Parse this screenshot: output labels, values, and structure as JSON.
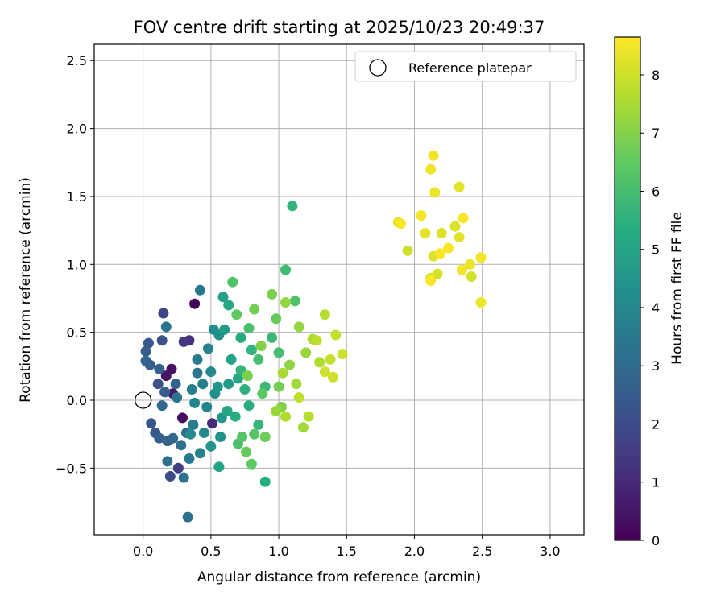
{
  "chart_data": {
    "type": "scatter",
    "title": "FOV centre drift starting at 2025/10/23 20:49:37",
    "xlabel": "Angular distance from reference (arcmin)",
    "ylabel": "Rotation from reference (arcmin)",
    "xlim": [
      -0.36,
      3.25
    ],
    "ylim": [
      -0.99,
      2.62
    ],
    "xticks": [
      0.0,
      0.5,
      1.0,
      1.5,
      2.0,
      2.5,
      3.0
    ],
    "xtick_labels": [
      "0.0",
      "0.5",
      "1.0",
      "1.5",
      "2.0",
      "2.5",
      "3.0"
    ],
    "yticks": [
      -0.5,
      0.0,
      0.5,
      1.0,
      1.5,
      2.0,
      2.5
    ],
    "ytick_labels": [
      "−0.5",
      "0.0",
      "0.5",
      "1.0",
      "1.5",
      "2.0",
      "2.5"
    ],
    "grid": true,
    "colormap": "viridis",
    "colorbar": {
      "label": "Hours from first FF file",
      "range": [
        0,
        8.65
      ],
      "ticks": [
        0,
        1,
        2,
        3,
        4,
        5,
        6,
        7,
        8
      ],
      "tick_labels": [
        "0",
        "1",
        "2",
        "3",
        "4",
        "5",
        "6",
        "7",
        "8"
      ]
    },
    "legend": {
      "placement": "top-right",
      "label": "Reference platepar"
    },
    "reference_point": {
      "x": 0.0,
      "y": 0.0,
      "marker": "open-circle"
    },
    "series": [
      {
        "color_by": "hours",
        "points": [
          {
            "x": 0.38,
            "y": 0.71,
            "c": 0.1
          },
          {
            "x": 0.21,
            "y": 0.23,
            "c": 0.4
          },
          {
            "x": 0.29,
            "y": -0.13,
            "c": 0.3
          },
          {
            "x": 0.17,
            "y": 0.18,
            "c": 0.5
          },
          {
            "x": 0.22,
            "y": 0.05,
            "c": 0.7
          },
          {
            "x": 0.34,
            "y": 0.44,
            "c": 1.2
          },
          {
            "x": 0.51,
            "y": -0.17,
            "c": 1.0
          },
          {
            "x": 0.3,
            "y": 0.43,
            "c": 1.4
          },
          {
            "x": 0.26,
            "y": -0.5,
            "c": 1.6
          },
          {
            "x": 0.15,
            "y": 0.64,
            "c": 1.8
          },
          {
            "x": 0.2,
            "y": -0.56,
            "c": 2.0
          },
          {
            "x": 0.11,
            "y": 0.12,
            "c": 2.1
          },
          {
            "x": 0.06,
            "y": -0.17,
            "c": 2.3
          },
          {
            "x": 0.14,
            "y": 0.44,
            "c": 2.2
          },
          {
            "x": 0.09,
            "y": -0.24,
            "c": 2.4
          },
          {
            "x": 0.02,
            "y": 0.36,
            "c": 2.5
          },
          {
            "x": 0.04,
            "y": 0.42,
            "c": 2.4
          },
          {
            "x": 0.12,
            "y": -0.28,
            "c": 2.6
          },
          {
            "x": 0.16,
            "y": 0.06,
            "c": 2.5
          },
          {
            "x": 0.18,
            "y": -0.3,
            "c": 2.7
          },
          {
            "x": 0.02,
            "y": 0.29,
            "c": 2.8
          },
          {
            "x": 0.05,
            "y": 0.26,
            "c": 2.6
          },
          {
            "x": 0.22,
            "y": -0.28,
            "c": 2.9
          },
          {
            "x": 0.24,
            "y": 0.12,
            "c": 2.8
          },
          {
            "x": 0.32,
            "y": -0.24,
            "c": 3.0
          },
          {
            "x": 0.14,
            "y": -0.04,
            "c": 2.9
          },
          {
            "x": 0.12,
            "y": 0.23,
            "c": 2.7
          },
          {
            "x": 0.28,
            "y": -0.33,
            "c": 3.1
          },
          {
            "x": 0.33,
            "y": -0.86,
            "c": 3.2
          },
          {
            "x": 0.18,
            "y": -0.45,
            "c": 3.2
          },
          {
            "x": 0.3,
            "y": -0.57,
            "c": 3.3
          },
          {
            "x": 0.17,
            "y": 0.54,
            "c": 3.3
          },
          {
            "x": 0.25,
            "y": 0.02,
            "c": 3.4
          },
          {
            "x": 0.4,
            "y": 0.2,
            "c": 3.4
          },
          {
            "x": 0.42,
            "y": 0.81,
            "c": 3.5
          },
          {
            "x": 0.34,
            "y": -0.43,
            "c": 3.5
          },
          {
            "x": 0.4,
            "y": 0.3,
            "c": 3.6
          },
          {
            "x": 0.37,
            "y": -0.18,
            "c": 3.6
          },
          {
            "x": 0.44,
            "y": 0.12,
            "c": 3.7
          },
          {
            "x": 0.36,
            "y": 0.08,
            "c": 3.7
          },
          {
            "x": 0.48,
            "y": 0.38,
            "c": 3.8
          },
          {
            "x": 0.42,
            "y": -0.39,
            "c": 3.8
          },
          {
            "x": 0.47,
            "y": -0.05,
            "c": 3.9
          },
          {
            "x": 0.38,
            "y": -0.02,
            "c": 3.9
          },
          {
            "x": 0.5,
            "y": 0.21,
            "c": 4.0
          },
          {
            "x": 0.45,
            "y": -0.24,
            "c": 4.0
          },
          {
            "x": 0.35,
            "y": -0.25,
            "c": 4.1
          },
          {
            "x": 0.52,
            "y": 0.52,
            "c": 4.2
          },
          {
            "x": 0.56,
            "y": 0.48,
            "c": 4.3
          },
          {
            "x": 0.53,
            "y": 0.05,
            "c": 4.3
          },
          {
            "x": 0.57,
            "y": -0.27,
            "c": 4.4
          },
          {
            "x": 0.5,
            "y": -0.34,
            "c": 4.5
          },
          {
            "x": 0.55,
            "y": 0.1,
            "c": 4.5
          },
          {
            "x": 0.58,
            "y": -0.13,
            "c": 4.6
          },
          {
            "x": 0.63,
            "y": 0.12,
            "c": 4.7
          },
          {
            "x": 0.6,
            "y": 0.52,
            "c": 4.7
          },
          {
            "x": 0.59,
            "y": 0.76,
            "c": 4.8
          },
          {
            "x": 0.56,
            "y": -0.49,
            "c": 5.0
          },
          {
            "x": 0.65,
            "y": 0.3,
            "c": 5.0
          },
          {
            "x": 0.62,
            "y": -0.08,
            "c": 5.1
          },
          {
            "x": 0.7,
            "y": 0.16,
            "c": 5.1
          },
          {
            "x": 0.63,
            "y": 0.7,
            "c": 5.2
          },
          {
            "x": 0.9,
            "y": -0.6,
            "c": 5.3
          },
          {
            "x": 0.72,
            "y": 0.46,
            "c": 5.3
          },
          {
            "x": 0.68,
            "y": -0.12,
            "c": 5.4
          },
          {
            "x": 0.78,
            "y": -0.04,
            "c": 5.4
          },
          {
            "x": 0.75,
            "y": 0.08,
            "c": 5.5
          },
          {
            "x": 1.1,
            "y": 1.43,
            "c": 5.6
          },
          {
            "x": 0.8,
            "y": 0.37,
            "c": 5.6
          },
          {
            "x": 0.85,
            "y": -0.18,
            "c": 5.7
          },
          {
            "x": 0.72,
            "y": 0.22,
            "c": 5.7
          },
          {
            "x": 0.9,
            "y": 0.1,
            "c": 5.8
          },
          {
            "x": 0.95,
            "y": 0.46,
            "c": 5.8
          },
          {
            "x": 1.05,
            "y": 0.96,
            "c": 5.9
          },
          {
            "x": 1.0,
            "y": 0.35,
            "c": 6.0
          },
          {
            "x": 0.85,
            "y": 0.3,
            "c": 6.0
          },
          {
            "x": 0.7,
            "y": -0.32,
            "c": 6.1
          },
          {
            "x": 0.78,
            "y": 0.53,
            "c": 6.1
          },
          {
            "x": 0.66,
            "y": 0.87,
            "c": 6.2
          },
          {
            "x": 1.12,
            "y": 0.73,
            "c": 6.2
          },
          {
            "x": 0.73,
            "y": -0.27,
            "c": 6.3
          },
          {
            "x": 0.82,
            "y": -0.25,
            "c": 6.3
          },
          {
            "x": 0.88,
            "y": 0.05,
            "c": 6.4
          },
          {
            "x": 0.8,
            "y": -0.47,
            "c": 6.5
          },
          {
            "x": 0.69,
            "y": 0.63,
            "c": 6.5
          },
          {
            "x": 0.98,
            "y": 0.6,
            "c": 6.6
          },
          {
            "x": 0.76,
            "y": -0.38,
            "c": 6.6
          },
          {
            "x": 0.9,
            "y": -0.27,
            "c": 6.7
          },
          {
            "x": 0.82,
            "y": 0.67,
            "c": 6.8
          },
          {
            "x": 1.0,
            "y": 0.1,
            "c": 6.8
          },
          {
            "x": 0.95,
            "y": 0.78,
            "c": 6.9
          },
          {
            "x": 0.77,
            "y": 0.18,
            "c": 6.9
          },
          {
            "x": 1.02,
            "y": -0.05,
            "c": 7.0
          },
          {
            "x": 0.87,
            "y": 0.4,
            "c": 7.0
          },
          {
            "x": 1.08,
            "y": 0.26,
            "c": 7.1
          },
          {
            "x": 1.15,
            "y": 0.54,
            "c": 7.2
          },
          {
            "x": 1.05,
            "y": 0.72,
            "c": 7.2
          },
          {
            "x": 0.98,
            "y": -0.08,
            "c": 7.3
          },
          {
            "x": 1.2,
            "y": 0.35,
            "c": 7.3
          },
          {
            "x": 1.13,
            "y": 0.12,
            "c": 7.4
          },
          {
            "x": 1.18,
            "y": -0.2,
            "c": 7.4
          },
          {
            "x": 1.03,
            "y": 0.2,
            "c": 7.5
          },
          {
            "x": 1.25,
            "y": 0.45,
            "c": 7.5
          },
          {
            "x": 1.3,
            "y": 0.28,
            "c": 7.6
          },
          {
            "x": 1.05,
            "y": -0.12,
            "c": 7.6
          },
          {
            "x": 1.22,
            "y": -0.12,
            "c": 7.7
          },
          {
            "x": 1.34,
            "y": 0.63,
            "c": 7.7
          },
          {
            "x": 1.28,
            "y": 0.44,
            "c": 7.8
          },
          {
            "x": 1.15,
            "y": 0.02,
            "c": 7.8
          },
          {
            "x": 1.38,
            "y": 0.3,
            "c": 7.9
          },
          {
            "x": 1.42,
            "y": 0.48,
            "c": 7.9
          },
          {
            "x": 1.4,
            "y": 0.17,
            "c": 8.0
          },
          {
            "x": 1.47,
            "y": 0.34,
            "c": 8.0
          },
          {
            "x": 1.34,
            "y": 0.21,
            "c": 8.0
          },
          {
            "x": 1.95,
            "y": 1.1,
            "c": 8.0
          },
          {
            "x": 2.12,
            "y": 0.9,
            "c": 8.1
          },
          {
            "x": 2.42,
            "y": 0.91,
            "c": 8.1
          },
          {
            "x": 2.17,
            "y": 0.93,
            "c": 8.1
          },
          {
            "x": 2.2,
            "y": 1.23,
            "c": 8.2
          },
          {
            "x": 2.14,
            "y": 1.06,
            "c": 8.2
          },
          {
            "x": 2.3,
            "y": 1.28,
            "c": 8.2
          },
          {
            "x": 2.33,
            "y": 1.57,
            "c": 8.3
          },
          {
            "x": 1.88,
            "y": 1.31,
            "c": 8.3
          },
          {
            "x": 2.08,
            "y": 1.23,
            "c": 8.3
          },
          {
            "x": 2.33,
            "y": 1.2,
            "c": 8.3
          },
          {
            "x": 2.41,
            "y": 1.0,
            "c": 8.4
          },
          {
            "x": 2.49,
            "y": 0.72,
            "c": 8.4
          },
          {
            "x": 2.15,
            "y": 1.53,
            "c": 8.4
          },
          {
            "x": 2.12,
            "y": 1.7,
            "c": 8.4
          },
          {
            "x": 2.14,
            "y": 1.8,
            "c": 8.5
          },
          {
            "x": 2.05,
            "y": 1.36,
            "c": 8.5
          },
          {
            "x": 2.35,
            "y": 0.96,
            "c": 8.5
          },
          {
            "x": 2.49,
            "y": 1.05,
            "c": 8.5
          },
          {
            "x": 2.19,
            "y": 1.08,
            "c": 8.6
          },
          {
            "x": 2.25,
            "y": 1.12,
            "c": 8.6
          },
          {
            "x": 2.36,
            "y": 1.34,
            "c": 8.6
          },
          {
            "x": 2.12,
            "y": 0.88,
            "c": 8.6
          },
          {
            "x": 1.9,
            "y": 1.3,
            "c": 8.6
          }
        ]
      }
    ]
  }
}
